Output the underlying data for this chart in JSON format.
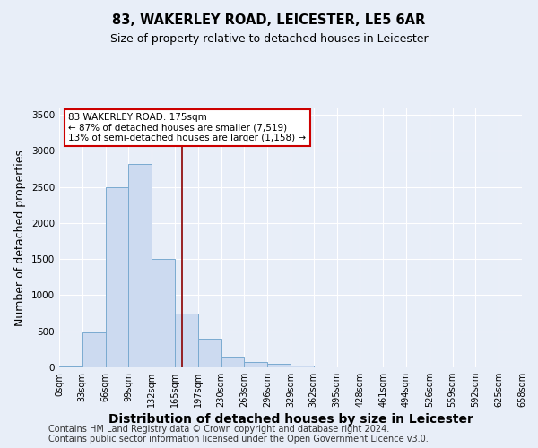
{
  "title": "83, WAKERLEY ROAD, LEICESTER, LE5 6AR",
  "subtitle": "Size of property relative to detached houses in Leicester",
  "xlabel": "Distribution of detached houses by size in Leicester",
  "ylabel": "Number of detached properties",
  "bar_left_edges": [
    0,
    33,
    66,
    99,
    132,
    165,
    198,
    231,
    264,
    297,
    330,
    363,
    396,
    429,
    462,
    495,
    528,
    561,
    594,
    627
  ],
  "bar_heights": [
    10,
    480,
    2500,
    2820,
    1500,
    750,
    400,
    150,
    70,
    55,
    20,
    5,
    0,
    0,
    0,
    0,
    0,
    0,
    0,
    0
  ],
  "bin_width": 33,
  "bar_facecolor": "#ccdaf0",
  "bar_edgecolor": "#7aaad0",
  "vline_x": 175,
  "vline_color": "#8b0000",
  "annotation_title": "83 WAKERLEY ROAD: 175sqm",
  "annotation_line2": "← 87% of detached houses are smaller (7,519)",
  "annotation_line3": "13% of semi-detached houses are larger (1,158) →",
  "annotation_box_edgecolor": "#cc0000",
  "annotation_box_facecolor": "#ffffff",
  "ylim": [
    0,
    3600
  ],
  "xlim": [
    0,
    660
  ],
  "xtick_positions": [
    0,
    33,
    66,
    99,
    132,
    165,
    198,
    231,
    264,
    297,
    330,
    363,
    396,
    429,
    462,
    495,
    528,
    561,
    594,
    627,
    660
  ],
  "xtick_labels": [
    "0sqm",
    "33sqm",
    "66sqm",
    "99sqm",
    "132sqm",
    "165sqm",
    "197sqm",
    "230sqm",
    "263sqm",
    "296sqm",
    "329sqm",
    "362sqm",
    "395sqm",
    "428sqm",
    "461sqm",
    "494sqm",
    "526sqm",
    "559sqm",
    "592sqm",
    "625sqm",
    "658sqm"
  ],
  "ytick_positions": [
    0,
    500,
    1000,
    1500,
    2000,
    2500,
    3000,
    3500
  ],
  "footer_line1": "Contains HM Land Registry data © Crown copyright and database right 2024.",
  "footer_line2": "Contains public sector information licensed under the Open Government Licence v3.0.",
  "bg_color": "#e8eef8",
  "plot_bg_color": "#e8eef8",
  "grid_color": "#ffffff",
  "title_fontsize": 10.5,
  "subtitle_fontsize": 9,
  "axis_label_fontsize": 9,
  "tick_fontsize": 7,
  "footer_fontsize": 7
}
